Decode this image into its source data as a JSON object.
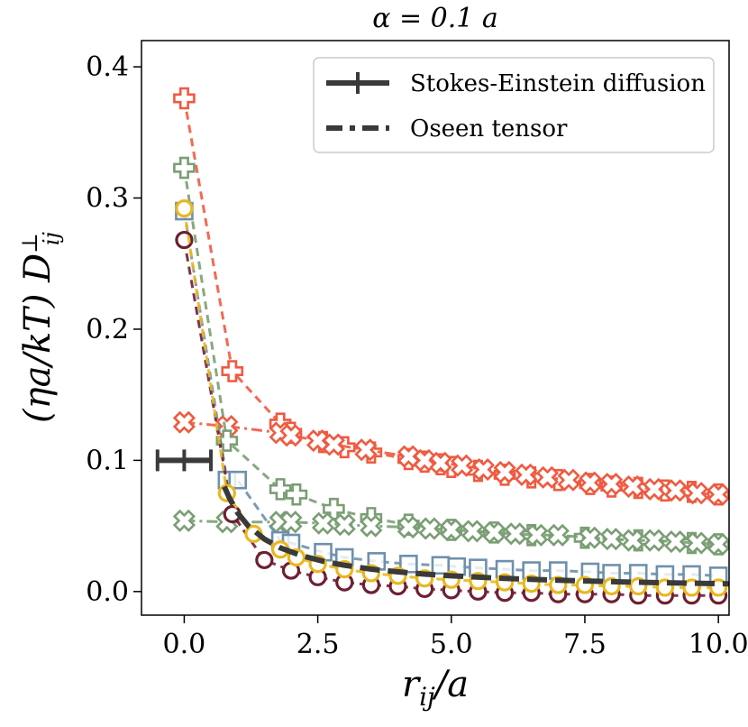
{
  "chart_data": {
    "type": "scatter",
    "title": "α = 0.1 a",
    "xlabel": "r_ij / a",
    "ylabel": "(ηa/kT) D⊥ij",
    "xlim": [
      -0.8,
      10.2
    ],
    "ylim": [
      -0.018,
      0.42
    ],
    "xticks": [
      0.0,
      2.5,
      5.0,
      7.5,
      10.0
    ],
    "xtick_labels": [
      "0.0",
      "2.5",
      "5.0",
      "7.5",
      "10.0"
    ],
    "yticks": [
      0.0,
      0.1,
      0.2,
      0.3,
      0.4
    ],
    "ytick_labels": [
      "0.0",
      "0.1",
      "0.2",
      "0.3",
      "0.4"
    ],
    "legend": {
      "placement": "top-right",
      "entries": [
        "Stokes-Einstein diffusion",
        "Oseen tensor"
      ]
    },
    "colors": {
      "orange": "#f05a40",
      "green": "#7a9e74",
      "blue": "#6e90ab",
      "maroon": "#6e1f33",
      "gold": "#e8b820",
      "black": "#3a3a3a"
    },
    "stokes_einstein": {
      "x": [
        -0.5,
        0.0,
        0.5
      ],
      "y": [
        0.1,
        0.1,
        0.1
      ]
    },
    "oseen": {
      "x": [
        0.75,
        0.85,
        1.0,
        1.2,
        1.5,
        1.8,
        2.2,
        2.6,
        3.0,
        3.5,
        4.0,
        4.5,
        5.0,
        6.0,
        7.0,
        8.0,
        9.0,
        10.0,
        10.2
      ],
      "y": [
        0.08,
        0.071,
        0.06,
        0.05,
        0.04,
        0.0333,
        0.0273,
        0.0231,
        0.02,
        0.0171,
        0.015,
        0.0133,
        0.012,
        0.01,
        0.0086,
        0.0075,
        0.0067,
        0.006,
        0.0059
      ]
    },
    "series": [
      {
        "name": "",
        "marker": "plus",
        "color": "#f05a40",
        "line": "dash",
        "x": [
          0.0,
          0.9,
          1.8,
          2.0,
          2.6,
          3.0,
          3.5,
          4.2,
          4.5,
          4.8,
          5.0,
          5.5,
          6.0,
          6.5,
          7.0,
          7.6,
          8.0,
          8.5,
          9.0,
          9.5,
          10.0
        ],
        "y": [
          0.376,
          0.168,
          0.128,
          0.121,
          0.114,
          0.11,
          0.106,
          0.101,
          0.099,
          0.097,
          0.095,
          0.092,
          0.089,
          0.087,
          0.085,
          0.082,
          0.08,
          0.079,
          0.077,
          0.076,
          0.074
        ]
      },
      {
        "name": "",
        "marker": "x",
        "color": "#f05a40",
        "line": "dashdot",
        "x": [
          0.0,
          0.8,
          1.8,
          2.0,
          2.5,
          2.8,
          3.4,
          4.2,
          4.5,
          4.8,
          5.2,
          5.6,
          6.0,
          6.4,
          6.8,
          7.2,
          7.6,
          8.0,
          8.4,
          8.8,
          9.2,
          9.6,
          10.0
        ],
        "y": [
          0.129,
          0.126,
          0.121,
          0.119,
          0.115,
          0.112,
          0.108,
          0.103,
          0.1,
          0.098,
          0.096,
          0.093,
          0.091,
          0.089,
          0.087,
          0.085,
          0.083,
          0.082,
          0.08,
          0.078,
          0.077,
          0.075,
          0.074
        ]
      },
      {
        "name": "",
        "marker": "plus",
        "color": "#7a9e74",
        "line": "dash",
        "x": [
          0.0,
          0.8,
          1.8,
          2.1,
          2.8,
          3.5,
          4.2,
          5.0,
          5.8,
          6.5,
          7.5,
          8.5,
          9.5,
          10.0
        ],
        "y": [
          0.323,
          0.115,
          0.078,
          0.074,
          0.063,
          0.056,
          0.051,
          0.047,
          0.045,
          0.043,
          0.041,
          0.039,
          0.037,
          0.036
        ]
      },
      {
        "name": "",
        "marker": "x",
        "color": "#7a9e74",
        "line": "dashdot",
        "x": [
          0.0,
          0.8,
          1.8,
          2.0,
          2.6,
          3.0,
          3.5,
          4.2,
          4.6,
          5.0,
          5.4,
          5.8,
          6.2,
          6.6,
          7.0,
          7.6,
          8.0,
          8.4,
          8.8,
          9.2,
          9.6,
          10.0
        ],
        "y": [
          0.054,
          0.053,
          0.053,
          0.053,
          0.052,
          0.051,
          0.05,
          0.049,
          0.048,
          0.047,
          0.046,
          0.045,
          0.044,
          0.043,
          0.043,
          0.041,
          0.04,
          0.039,
          0.039,
          0.038,
          0.037,
          0.036
        ]
      },
      {
        "name": "",
        "marker": "square",
        "color": "#6e90ab",
        "line": "dash",
        "x": [
          0.0,
          0.8,
          1.0,
          1.8,
          2.0,
          2.6,
          3.0,
          3.6,
          4.2,
          4.8,
          5.1,
          5.5,
          6.0,
          6.5,
          7.0,
          7.6,
          8.0,
          8.5,
          9.0,
          9.5,
          10.0
        ],
        "y": [
          0.29,
          0.085,
          0.085,
          0.039,
          0.037,
          0.03,
          0.026,
          0.023,
          0.021,
          0.02,
          0.019,
          0.018,
          0.017,
          0.016,
          0.016,
          0.015,
          0.014,
          0.014,
          0.013,
          0.013,
          0.012
        ]
      },
      {
        "name": "",
        "marker": "circle",
        "color": "#6e1f33",
        "line": "dash",
        "x": [
          0.0,
          0.9,
          1.5,
          2.0,
          2.5,
          3.0,
          3.5,
          4.0,
          4.5,
          5.0,
          5.5,
          6.0,
          6.5,
          7.0,
          7.5,
          8.0,
          8.5,
          9.0,
          9.5,
          10.0
        ],
        "y": [
          0.268,
          0.059,
          0.024,
          0.016,
          0.011,
          0.007,
          0.005,
          0.004,
          0.002,
          0.001,
          0.0,
          -0.001,
          -0.001,
          -0.002,
          -0.002,
          -0.002,
          -0.003,
          -0.003,
          -0.003,
          -0.003
        ]
      },
      {
        "name": "",
        "marker": "circle",
        "color": "#e8b820",
        "line": "dash",
        "x": [
          0.0,
          0.8,
          1.3,
          1.8,
          2.1,
          2.5,
          3.0,
          3.5,
          4.0,
          4.5,
          5.0,
          5.5,
          6.0,
          6.5,
          7.0,
          7.5,
          8.0,
          8.5,
          9.0,
          9.5,
          10.0
        ],
        "y": [
          0.292,
          0.075,
          0.044,
          0.032,
          0.026,
          0.021,
          0.017,
          0.014,
          0.012,
          0.01,
          0.009,
          0.008,
          0.007,
          0.006,
          0.005,
          0.005,
          0.004,
          0.004,
          0.003,
          0.003,
          0.003
        ]
      }
    ]
  }
}
